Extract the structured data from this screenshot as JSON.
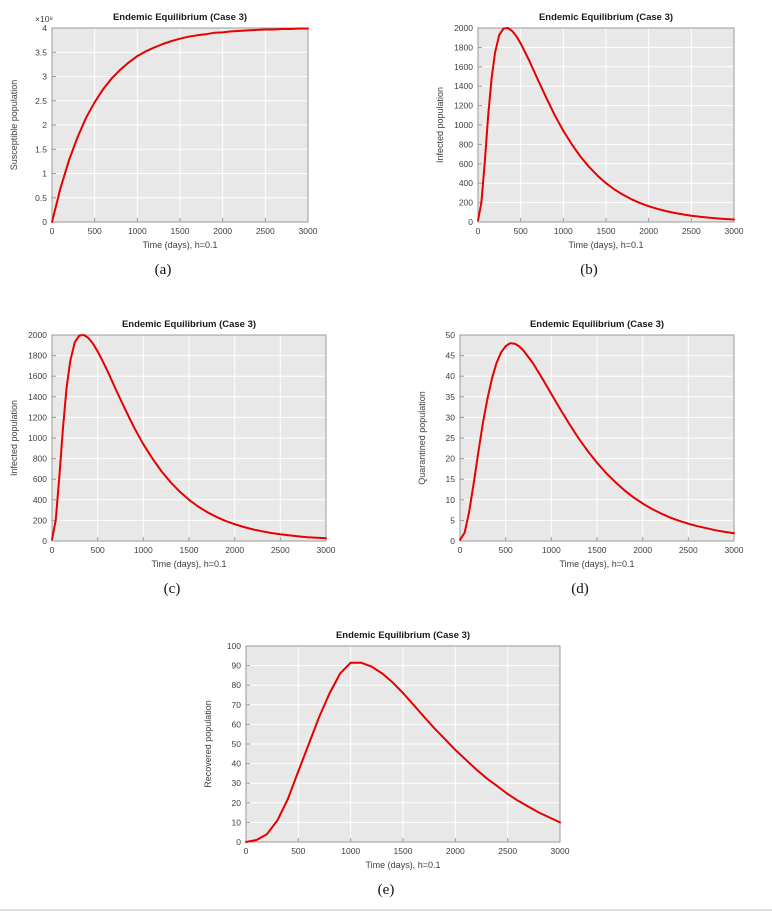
{
  "style": {
    "plot_bg": "#e8e8e8",
    "grid_color": "#ffffff",
    "axis_color": "#9a9a9a",
    "line_width": 2
  },
  "chart_data": [
    {
      "id": "a",
      "type": "line",
      "title": "Endemic Equilibrium (Case 3)",
      "xlabel": "Time (days), h=0.1",
      "ylabel": "Susceptible population",
      "caption": "(a)",
      "y_exponent_label": "×10⁸",
      "grid": true,
      "xlim": [
        0,
        3000
      ],
      "ylim": [
        0,
        4
      ],
      "xticks": [
        0,
        500,
        1000,
        1500,
        2000,
        2500,
        3000
      ],
      "xtick_labels": [
        "0",
        "500",
        "1000",
        "1500",
        "2000",
        "2500",
        "3000"
      ],
      "yticks": [
        0,
        0.5,
        1,
        1.5,
        2,
        2.5,
        3,
        3.5,
        4
      ],
      "ytick_labels": [
        "0",
        "0.5",
        "1",
        "1.5",
        "2",
        "2.5",
        "3",
        "3.5",
        "4"
      ],
      "series": [
        {
          "name": "Susceptible population",
          "color": "#e60000",
          "x": [
            0,
            100,
            200,
            300,
            400,
            500,
            600,
            700,
            800,
            900,
            1000,
            1100,
            1200,
            1300,
            1400,
            1500,
            1600,
            1700,
            1800,
            1900,
            2000,
            2100,
            2200,
            2300,
            2400,
            2500,
            2600,
            2700,
            2800,
            2900,
            3000
          ],
          "y": [
            0,
            0.7,
            1.28,
            1.75,
            2.15,
            2.47,
            2.74,
            2.96,
            3.14,
            3.29,
            3.42,
            3.52,
            3.6,
            3.67,
            3.73,
            3.78,
            3.82,
            3.85,
            3.87,
            3.9,
            3.91,
            3.93,
            3.94,
            3.95,
            3.96,
            3.97,
            3.97,
            3.98,
            3.98,
            3.99,
            3.99
          ]
        }
      ]
    },
    {
      "id": "b",
      "type": "line",
      "title": "Endemic Equilibrium (Case 3)",
      "xlabel": "Time (days), h=0.1",
      "ylabel": "Infected population",
      "caption": "(b)",
      "grid": true,
      "xlim": [
        0,
        3000
      ],
      "ylim": [
        0,
        2000
      ],
      "xticks": [
        0,
        500,
        1000,
        1500,
        2000,
        2500,
        3000
      ],
      "xtick_labels": [
        "0",
        "500",
        "1000",
        "1500",
        "2000",
        "2500",
        "3000"
      ],
      "yticks": [
        0,
        200,
        400,
        600,
        800,
        1000,
        1200,
        1400,
        1600,
        1800,
        2000
      ],
      "ytick_labels": [
        "0",
        "200",
        "400",
        "600",
        "800",
        "1000",
        "1200",
        "1400",
        "1600",
        "1800",
        "2000"
      ],
      "series": [
        {
          "name": "Infected population",
          "color": "#e60000",
          "x": [
            0,
            40,
            80,
            120,
            160,
            200,
            250,
            300,
            350,
            400,
            450,
            500,
            550,
            600,
            700,
            800,
            900,
            1000,
            1100,
            1200,
            1300,
            1400,
            1500,
            1600,
            1700,
            1800,
            1900,
            2000,
            2100,
            2200,
            2300,
            2400,
            2500,
            2600,
            2700,
            2800,
            2900,
            3000
          ],
          "y": [
            15,
            200,
            620,
            1100,
            1490,
            1750,
            1930,
            1995,
            2000,
            1970,
            1915,
            1840,
            1755,
            1665,
            1470,
            1280,
            1100,
            940,
            800,
            675,
            570,
            478,
            400,
            335,
            280,
            234,
            195,
            163,
            136,
            113,
            94,
            78,
            65,
            54,
            45,
            37,
            31,
            26
          ]
        }
      ]
    },
    {
      "id": "c",
      "type": "line",
      "title": "Endemic Equilibrium (Case 3)",
      "xlabel": "Time (days), h=0.1",
      "ylabel": "Infected population",
      "caption": "(c)",
      "grid": true,
      "xlim": [
        0,
        3000
      ],
      "ylim": [
        0,
        2000
      ],
      "xticks": [
        0,
        500,
        1000,
        1500,
        2000,
        2500,
        3000
      ],
      "xtick_labels": [
        "0",
        "500",
        "1000",
        "1500",
        "2000",
        "2500",
        "3000"
      ],
      "yticks": [
        0,
        200,
        400,
        600,
        800,
        1000,
        1200,
        1400,
        1600,
        1800,
        2000
      ],
      "ytick_labels": [
        "0",
        "200",
        "400",
        "600",
        "800",
        "1000",
        "1200",
        "1400",
        "1600",
        "1800",
        "2000"
      ],
      "series": [
        {
          "name": "Infected population",
          "color": "#e60000",
          "x": [
            0,
            40,
            80,
            120,
            160,
            200,
            250,
            300,
            350,
            400,
            450,
            500,
            550,
            600,
            700,
            800,
            900,
            1000,
            1100,
            1200,
            1300,
            1400,
            1500,
            1600,
            1700,
            1800,
            1900,
            2000,
            2100,
            2200,
            2300,
            2400,
            2500,
            2600,
            2700,
            2800,
            2900,
            3000
          ],
          "y": [
            15,
            200,
            620,
            1100,
            1490,
            1750,
            1930,
            1995,
            2000,
            1970,
            1915,
            1840,
            1755,
            1665,
            1470,
            1280,
            1100,
            940,
            800,
            675,
            570,
            478,
            400,
            335,
            280,
            234,
            195,
            163,
            136,
            113,
            94,
            78,
            65,
            54,
            45,
            37,
            31,
            26
          ]
        }
      ]
    },
    {
      "id": "d",
      "type": "line",
      "title": "Endemic Equilibrium (Case 3)",
      "xlabel": "Time (days), h=0.1",
      "ylabel": "Quarantined population",
      "caption": "(d)",
      "grid": true,
      "xlim": [
        0,
        3000
      ],
      "ylim": [
        0,
        50
      ],
      "xticks": [
        0,
        500,
        1000,
        1500,
        2000,
        2500,
        3000
      ],
      "xtick_labels": [
        "0",
        "500",
        "1000",
        "1500",
        "2000",
        "2500",
        "3000"
      ],
      "yticks": [
        0,
        5,
        10,
        15,
        20,
        25,
        30,
        35,
        40,
        45,
        50
      ],
      "ytick_labels": [
        "0",
        "5",
        "10",
        "15",
        "20",
        "25",
        "30",
        "35",
        "40",
        "45",
        "50"
      ],
      "series": [
        {
          "name": "Quarantined population",
          "color": "#e60000",
          "x": [
            0,
            50,
            100,
            150,
            200,
            250,
            300,
            350,
            400,
            450,
            500,
            550,
            600,
            650,
            700,
            800,
            900,
            1000,
            1100,
            1200,
            1300,
            1400,
            1500,
            1600,
            1700,
            1800,
            1900,
            2000,
            2100,
            2200,
            2300,
            2400,
            2500,
            2600,
            2700,
            2800,
            2900,
            3000
          ],
          "y": [
            0.3,
            2,
            7,
            14,
            21.5,
            28.5,
            34.5,
            39.5,
            43.2,
            45.8,
            47.3,
            48,
            47.9,
            47.2,
            46.1,
            43.1,
            39.5,
            35.7,
            31.9,
            28.3,
            24.9,
            21.8,
            19,
            16.5,
            14.3,
            12.3,
            10.6,
            9.1,
            7.8,
            6.7,
            5.7,
            4.9,
            4.2,
            3.6,
            3.1,
            2.6,
            2.2,
            1.9
          ]
        }
      ]
    },
    {
      "id": "e",
      "type": "line",
      "title": "Endemic Equilibrium (Case 3)",
      "xlabel": "Time (days), h=0.1",
      "ylabel": "Recovered population",
      "caption": "(e)",
      "grid": true,
      "xlim": [
        0,
        3000
      ],
      "ylim": [
        0,
        100
      ],
      "xticks": [
        0,
        500,
        1000,
        1500,
        2000,
        2500,
        3000
      ],
      "xtick_labels": [
        "0",
        "500",
        "1000",
        "1500",
        "2000",
        "2500",
        "3000"
      ],
      "yticks": [
        0,
        10,
        20,
        30,
        40,
        50,
        60,
        70,
        80,
        90,
        100
      ],
      "ytick_labels": [
        "0",
        "10",
        "20",
        "30",
        "40",
        "50",
        "60",
        "70",
        "80",
        "90",
        "100"
      ],
      "series": [
        {
          "name": "Recovered population",
          "color": "#e60000",
          "x": [
            0,
            100,
            200,
            300,
            400,
            500,
            600,
            700,
            800,
            900,
            1000,
            1100,
            1200,
            1300,
            1400,
            1500,
            1600,
            1700,
            1800,
            1900,
            2000,
            2100,
            2200,
            2300,
            2400,
            2500,
            2600,
            2700,
            2800,
            2900,
            3000
          ],
          "y": [
            0,
            1,
            4,
            11,
            22,
            36,
            50,
            64,
            76,
            86,
            91.5,
            91.5,
            89.5,
            86,
            81.5,
            76,
            70,
            64,
            58,
            52.5,
            47,
            42,
            37,
            32.5,
            28.5,
            24.5,
            21,
            18,
            15,
            12.5,
            10
          ]
        }
      ]
    }
  ]
}
